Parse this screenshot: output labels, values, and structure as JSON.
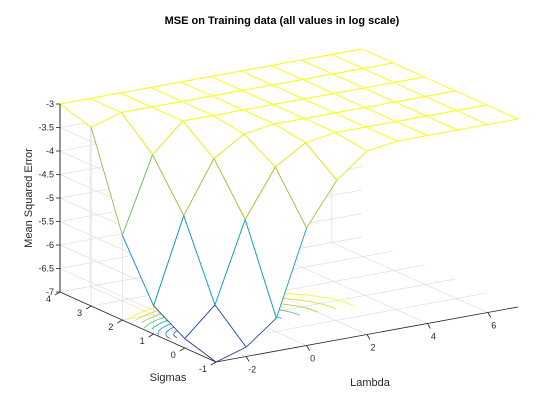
{
  "chart_data": {
    "type": "surface",
    "title": "MSE on Training data (all values in log scale)",
    "xlabel": "Lambda",
    "ylabel": "Sigmas",
    "zlabel": "Mean Squared Error",
    "xlim": [
      -3,
      7
    ],
    "ylim": [
      -1,
      4
    ],
    "zlim": [
      -7,
      -3
    ],
    "xticks": [
      -2,
      0,
      2,
      4,
      6
    ],
    "yticks": [
      -1,
      0,
      1,
      2,
      3,
      4
    ],
    "zticks": [
      -7,
      -6.5,
      -6,
      -5.5,
      -5,
      -4.5,
      -4,
      -3.5,
      -3
    ],
    "grid": true,
    "colormap": "parula",
    "lambda": [
      -3,
      -2,
      -1,
      0,
      1,
      2,
      3,
      4,
      5,
      6,
      7
    ],
    "sigmas": [
      -1,
      0,
      1,
      2,
      3,
      4
    ],
    "mse": [
      [
        -7.0,
        -6.8,
        -6.3,
        -4.5,
        -3.6,
        -3.1,
        -3.0,
        -3.0,
        -3.0,
        -3.0,
        -3.0
      ],
      [
        -6.8,
        -6.2,
        -4.5,
        -3.5,
        -3.1,
        -3.0,
        -3.0,
        -3.0,
        -3.0,
        -3.0,
        -3.0
      ],
      [
        -6.4,
        -4.6,
        -3.5,
        -3.1,
        -3.0,
        -3.0,
        -3.0,
        -3.0,
        -3.0,
        -3.0,
        -3.0
      ],
      [
        -5.2,
        -3.6,
        -3.0,
        -3.0,
        -3.0,
        -3.0,
        -3.0,
        -3.0,
        -3.0,
        -3.0,
        -3.0
      ],
      [
        -3.2,
        -3.0,
        -3.0,
        -3.0,
        -3.0,
        -3.0,
        -3.0,
        -3.0,
        -3.0,
        -3.0,
        -3.0
      ],
      [
        -3.0,
        -3.0,
        -3.0,
        -3.0,
        -3.0,
        -3.0,
        -3.0,
        -3.0,
        -3.0,
        -3.0,
        -3.0
      ]
    ]
  }
}
